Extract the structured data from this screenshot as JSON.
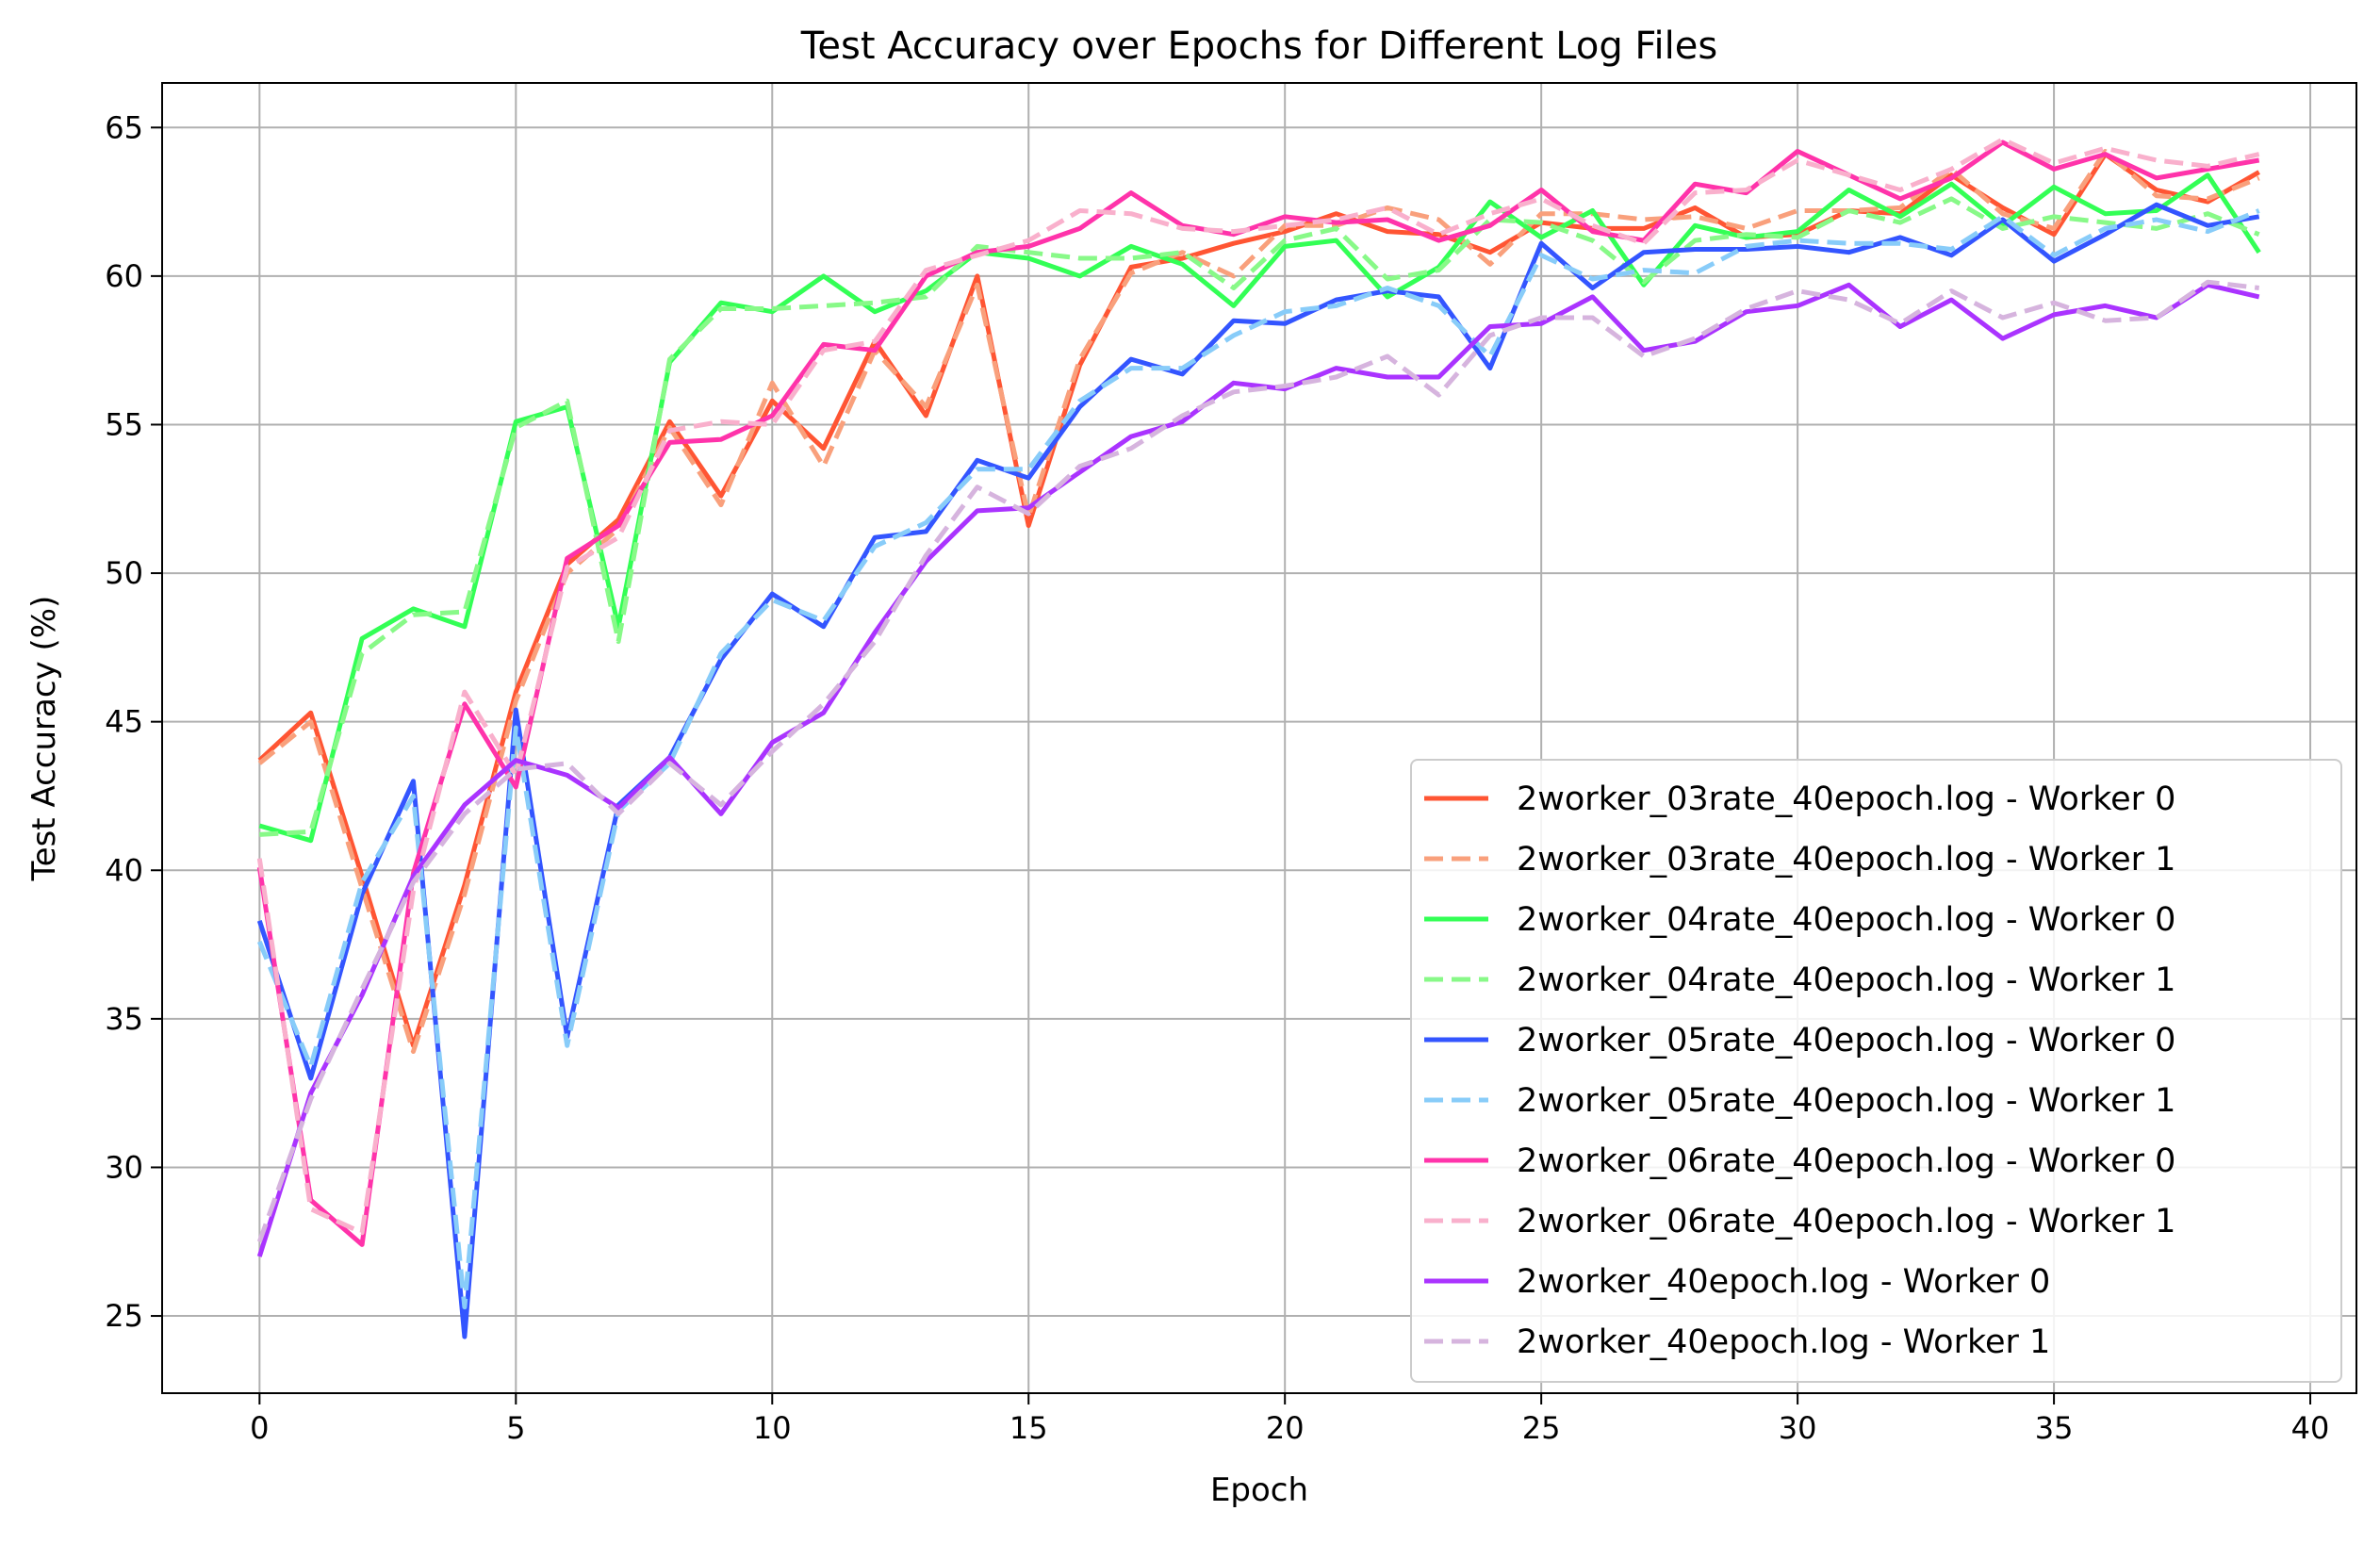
{
  "chart_data": {
    "type": "line",
    "title": "Test Accuracy over Epochs for Different Log Files",
    "xlabel": "Epoch",
    "ylabel": "Test Accuracy (%)",
    "xlim": [
      -1.9,
      40.9
    ],
    "ylim": [
      22.4,
      66.5
    ],
    "xticks": [
      0,
      5,
      10,
      15,
      20,
      25,
      30,
      35,
      40
    ],
    "yticks": [
      25,
      30,
      35,
      40,
      45,
      50,
      55,
      60,
      65
    ],
    "grid": true,
    "legend_position": "lower-right",
    "x": [
      0,
      1,
      2,
      3,
      4,
      5,
      6,
      7,
      8,
      9,
      10,
      11,
      12,
      13,
      14,
      15,
      16,
      17,
      18,
      19,
      20,
      21,
      22,
      23,
      24,
      25,
      26,
      27,
      28,
      29,
      30,
      31,
      32,
      33,
      34,
      35,
      36,
      37,
      38,
      39
    ],
    "series": [
      {
        "name": "2worker_03rate_40epoch.log - Worker 0",
        "color": "#ff5533",
        "dash": "solid",
        "values": [
          43.7,
          45.3,
          39.8,
          34.1,
          39.5,
          46.0,
          50.3,
          51.8,
          55.1,
          52.6,
          55.8,
          54.2,
          57.8,
          55.3,
          60.0,
          51.6,
          57.0,
          60.3,
          60.6,
          61.1,
          61.5,
          62.1,
          61.5,
          61.4,
          60.8,
          61.8,
          61.6,
          61.6,
          62.3,
          61.3,
          61.4,
          62.2,
          62.1,
          63.4,
          62.3,
          61.4,
          64.1,
          62.9,
          62.5,
          63.5
        ]
      },
      {
        "name": "2worker_03rate_40epoch.log - Worker 1",
        "color": "#f9a07c",
        "dash": "dashed",
        "values": [
          43.6,
          45.0,
          39.4,
          33.9,
          39.2,
          45.7,
          50.0,
          51.5,
          54.9,
          52.3,
          56.4,
          53.6,
          57.5,
          55.6,
          59.7,
          51.9,
          57.2,
          60.1,
          60.8,
          60.0,
          61.7,
          61.7,
          62.3,
          61.9,
          60.4,
          62.1,
          62.1,
          61.9,
          62.0,
          61.6,
          62.2,
          62.2,
          62.3,
          63.6,
          62.1,
          61.6,
          64.2,
          62.7,
          62.6,
          63.3
        ]
      },
      {
        "name": "2worker_04rate_40epoch.log - Worker 0",
        "color": "#33ff55",
        "dash": "solid",
        "values": [
          41.5,
          41.0,
          47.8,
          48.8,
          48.2,
          55.1,
          55.6,
          48.2,
          57.1,
          59.1,
          58.8,
          60.0,
          58.8,
          59.5,
          60.8,
          60.6,
          60.0,
          61.0,
          60.4,
          59.0,
          61.0,
          61.2,
          59.3,
          60.3,
          62.5,
          61.3,
          62.2,
          59.7,
          61.7,
          61.3,
          61.5,
          62.9,
          62.0,
          63.1,
          61.7,
          63.0,
          62.1,
          62.2,
          63.4,
          60.8
        ]
      },
      {
        "name": "2worker_04rate_40epoch.log - Worker 1",
        "color": "#88f988",
        "dash": "dashed",
        "values": [
          41.2,
          41.3,
          47.3,
          48.6,
          48.7,
          54.9,
          55.8,
          47.7,
          57.2,
          58.9,
          58.9,
          59.0,
          59.1,
          59.3,
          61.0,
          60.8,
          60.6,
          60.6,
          60.8,
          59.6,
          61.2,
          61.6,
          59.9,
          60.2,
          61.9,
          61.8,
          61.2,
          59.8,
          61.2,
          61.4,
          61.3,
          62.2,
          61.8,
          62.6,
          61.6,
          62.0,
          61.8,
          61.6,
          62.1,
          61.4
        ]
      },
      {
        "name": "2worker_05rate_40epoch.log - Worker 0",
        "color": "#3355ff",
        "dash": "solid",
        "values": [
          38.3,
          33.0,
          39.2,
          43.0,
          24.3,
          45.4,
          34.4,
          42.2,
          43.8,
          47.1,
          49.3,
          48.2,
          51.2,
          51.4,
          53.8,
          53.2,
          55.6,
          57.2,
          56.7,
          58.5,
          58.4,
          59.2,
          59.5,
          59.3,
          56.9,
          61.1,
          59.6,
          60.8,
          60.9,
          60.9,
          61.0,
          60.8,
          61.3,
          60.7,
          61.9,
          60.5,
          61.4,
          62.4,
          61.7,
          62.0
        ]
      },
      {
        "name": "2worker_05rate_40epoch.log - Worker 1",
        "color": "#88ccf9",
        "dash": "dashed",
        "values": [
          37.6,
          33.4,
          39.6,
          42.5,
          25.3,
          44.8,
          34.1,
          42.0,
          43.6,
          47.3,
          49.1,
          48.4,
          50.9,
          51.7,
          53.5,
          53.5,
          55.8,
          56.9,
          56.9,
          58.0,
          58.8,
          59.0,
          59.6,
          59.0,
          57.3,
          60.7,
          59.9,
          60.2,
          60.1,
          61.0,
          61.2,
          61.1,
          61.1,
          60.9,
          62.0,
          60.7,
          61.6,
          61.9,
          61.5,
          62.2
        ]
      },
      {
        "name": "2worker_06rate_40epoch.log - Worker 0",
        "color": "#ff33aa",
        "dash": "solid",
        "values": [
          40.1,
          28.9,
          27.4,
          39.9,
          45.6,
          42.8,
          50.5,
          51.6,
          54.4,
          54.5,
          55.3,
          57.7,
          57.5,
          60.0,
          60.8,
          61.0,
          61.6,
          62.8,
          61.7,
          61.4,
          62.0,
          61.8,
          61.9,
          61.2,
          61.7,
          62.9,
          61.5,
          61.2,
          63.1,
          62.8,
          64.2,
          63.4,
          62.6,
          63.3,
          64.5,
          63.6,
          64.1,
          63.3,
          63.6,
          63.9
        ]
      },
      {
        "name": "2worker_06rate_40epoch.log - Worker 1",
        "color": "#f9b0cc",
        "dash": "dashed",
        "values": [
          40.4,
          28.6,
          27.8,
          39.3,
          46.0,
          43.2,
          50.2,
          51.2,
          54.8,
          55.1,
          55.0,
          57.5,
          57.8,
          60.2,
          60.7,
          61.2,
          62.2,
          62.1,
          61.6,
          61.5,
          61.7,
          61.9,
          62.3,
          61.4,
          62.1,
          62.6,
          61.7,
          61.1,
          62.8,
          62.9,
          63.9,
          63.4,
          62.9,
          63.6,
          64.6,
          63.8,
          64.3,
          63.9,
          63.7,
          64.1
        ]
      },
      {
        "name": "2worker_40epoch.log - Worker 0",
        "color": "#aa33ff",
        "dash": "solid",
        "values": [
          27.0,
          32.5,
          35.8,
          39.8,
          42.2,
          43.7,
          43.2,
          42.1,
          43.8,
          41.9,
          44.3,
          45.3,
          48.0,
          50.4,
          52.1,
          52.2,
          53.4,
          54.6,
          55.1,
          56.4,
          56.2,
          56.9,
          56.6,
          56.6,
          58.3,
          58.4,
          59.3,
          57.5,
          57.8,
          58.8,
          59.0,
          59.7,
          58.3,
          59.2,
          57.9,
          58.7,
          59.0,
          58.6,
          59.7,
          59.3
        ]
      },
      {
        "name": "2worker_40epoch.log - Worker 1",
        "color": "#d6b4de",
        "dash": "dashed",
        "values": [
          27.5,
          32.3,
          36.0,
          39.6,
          41.9,
          43.4,
          43.6,
          41.9,
          43.6,
          42.2,
          44.0,
          45.6,
          47.7,
          50.6,
          52.9,
          52.0,
          53.6,
          54.2,
          55.3,
          56.1,
          56.3,
          56.6,
          57.3,
          56.0,
          58.0,
          58.6,
          58.6,
          57.3,
          57.9,
          58.9,
          59.5,
          59.2,
          58.4,
          59.5,
          58.6,
          59.1,
          58.5,
          58.6,
          59.8,
          59.6
        ]
      }
    ]
  }
}
